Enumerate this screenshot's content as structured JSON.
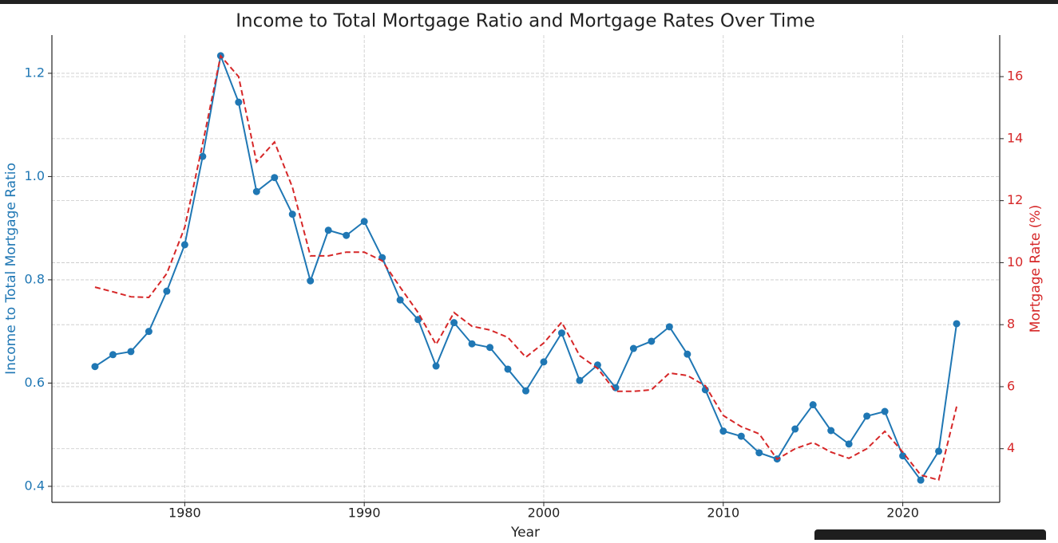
{
  "chart_data": {
    "type": "line",
    "title": "Income to Total Mortgage Ratio and Mortgage Rates Over Time",
    "xlabel": "Year",
    "x": [
      1975,
      1976,
      1977,
      1978,
      1979,
      1980,
      1981,
      1982,
      1983,
      1984,
      1985,
      1986,
      1987,
      1988,
      1989,
      1990,
      1991,
      1992,
      1993,
      1994,
      1995,
      1996,
      1997,
      1998,
      1999,
      2000,
      2001,
      2002,
      2003,
      2004,
      2005,
      2006,
      2007,
      2008,
      2009,
      2010,
      2011,
      2012,
      2013,
      2014,
      2015,
      2016,
      2017,
      2018,
      2019,
      2020,
      2021,
      2022,
      2023
    ],
    "series": [
      {
        "name": "Income to Total Mortgage Ratio",
        "color": "#1f77b4",
        "marker": true,
        "dashed": false,
        "values": [
          0.632,
          0.655,
          0.661,
          0.7,
          0.778,
          0.868,
          1.039,
          1.234,
          1.144,
          0.971,
          0.998,
          0.927,
          0.798,
          0.896,
          0.886,
          0.913,
          0.843,
          0.761,
          0.723,
          0.633,
          0.717,
          0.676,
          0.669,
          0.627,
          0.585,
          0.641,
          0.697,
          0.605,
          0.635,
          0.591,
          0.667,
          0.681,
          0.709,
          0.656,
          0.587,
          0.507,
          0.497,
          0.465,
          0.453,
          0.511,
          0.558,
          0.508,
          0.482,
          0.536,
          0.545,
          0.459,
          0.412,
          0.468,
          0.715
        ]
      },
      {
        "name": "Mortgage Rate (%)",
        "color": "#d62728",
        "marker": false,
        "dashed": true,
        "axis": "y2",
        "values": [
          9.21,
          9.06,
          8.9,
          8.88,
          9.65,
          11.14,
          13.84,
          16.67,
          16.0,
          13.25,
          13.89,
          12.43,
          10.22,
          10.22,
          10.34,
          10.34,
          10.06,
          9.21,
          8.39,
          7.36,
          8.39,
          7.95,
          7.83,
          7.59,
          6.95,
          7.41,
          8.08,
          7.0,
          6.59,
          5.85,
          5.85,
          5.9,
          6.44,
          6.36,
          6.03,
          5.07,
          4.71,
          4.48,
          3.66,
          4.0,
          4.2,
          3.89,
          3.69,
          4.0,
          4.56,
          3.89,
          3.15,
          2.99,
          5.36
        ]
      }
    ],
    "xlim": [
      1972.6,
      2025.4
    ],
    "xticks": [
      1980,
      1990,
      2000,
      2010,
      2020
    ],
    "ylim": [
      0.369,
      1.274
    ],
    "yticks": [
      0.4,
      0.6,
      0.8,
      {
        "value": 1,
        "label": "1.0"
      },
      1.2
    ],
    "y2lim": [
      2.27,
      17.34
    ],
    "y2ticks": [
      4,
      6,
      8,
      10,
      12,
      14,
      16
    ],
    "grid": true
  }
}
